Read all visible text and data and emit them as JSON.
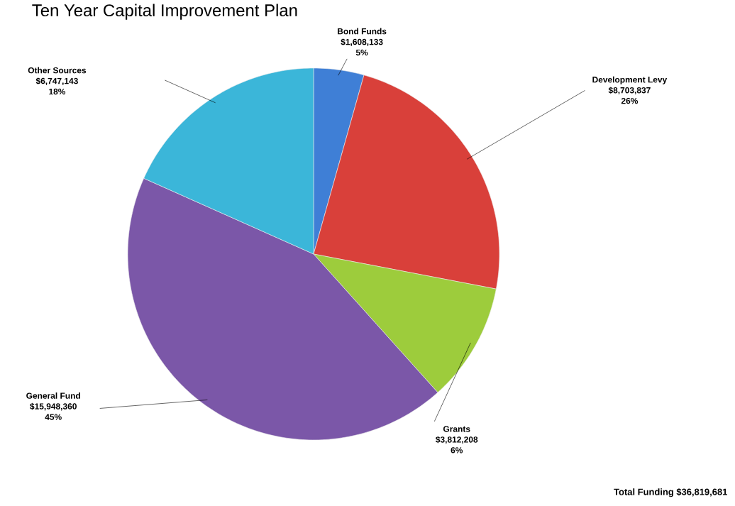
{
  "chart_data": {
    "type": "pie",
    "title": "Ten Year Capital Improvement Plan",
    "categories": [
      "Bond Funds",
      "Development Levy",
      "Grants",
      "General Fund",
      "Other Sources"
    ],
    "values": [
      1608133,
      8703837,
      3812208,
      15948360,
      6747143
    ],
    "colors": [
      "#3f7fd6",
      "#d9403a",
      "#9dcc3c",
      "#7b57a8",
      "#3bb6d9"
    ],
    "value_labels": [
      "$1,608,133",
      "$8,703,837",
      "$3,812,208",
      "$15,948,360",
      "$6,747,143"
    ],
    "annotations": [
      "5%",
      "26%",
      "6%",
      "45%",
      "18%",
      "Total Funding  $36,819,681"
    ]
  }
}
